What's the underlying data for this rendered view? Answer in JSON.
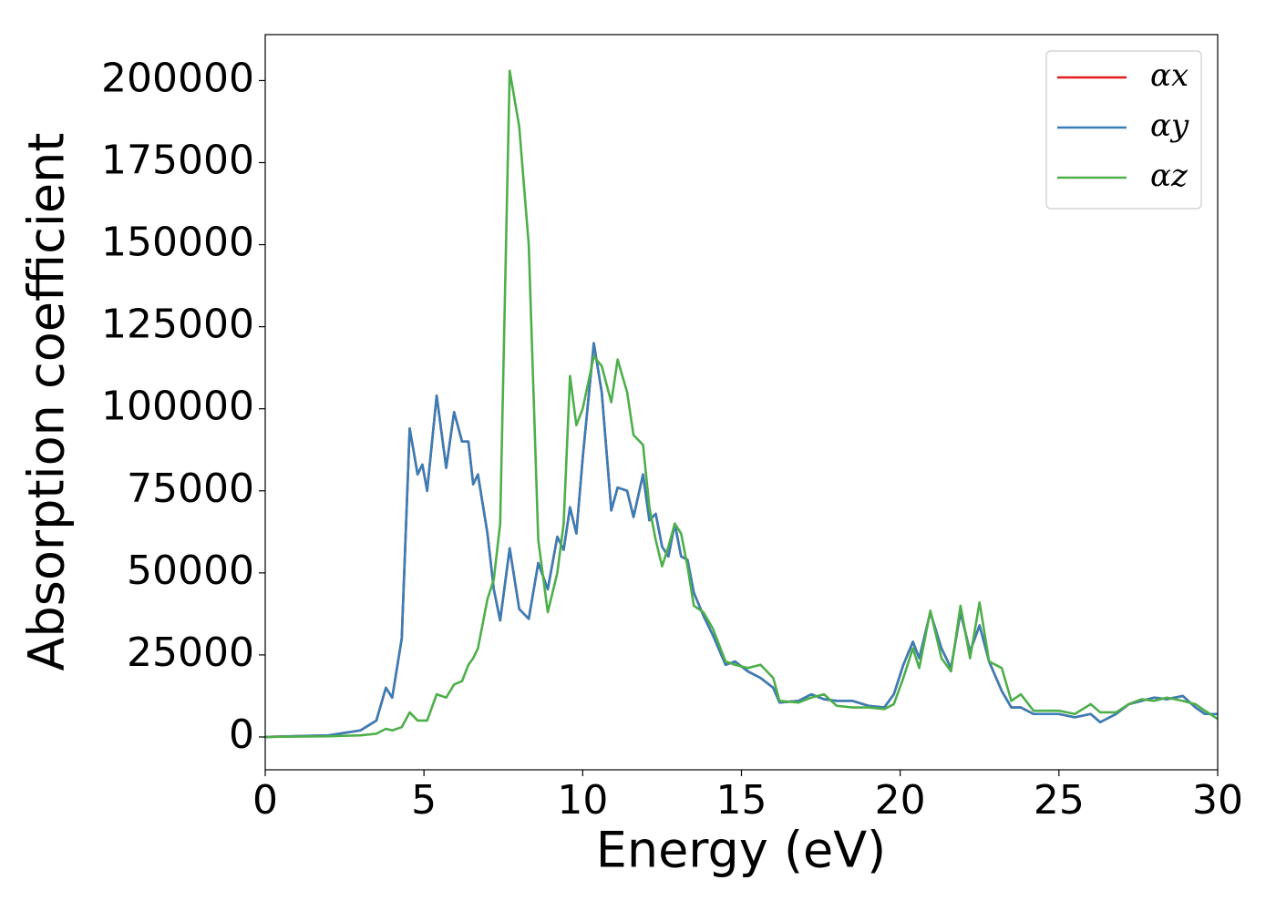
{
  "chart_data": {
    "type": "line",
    "x_label": "Energy (eV)",
    "y_label": "Absorption coefficient",
    "xlim": [
      0,
      30
    ],
    "ylim": [
      -10000,
      214000
    ],
    "xticks": [
      0,
      5,
      10,
      15,
      20,
      25,
      30
    ],
    "yticks": [
      0,
      25000,
      50000,
      75000,
      100000,
      125000,
      150000,
      175000,
      200000
    ],
    "legend": "upper right",
    "x": [
      0,
      2,
      3,
      3.5,
      3.8,
      4.0,
      4.3,
      4.55,
      4.8,
      4.95,
      5.1,
      5.4,
      5.7,
      5.95,
      6.2,
      6.4,
      6.55,
      6.7,
      7.0,
      7.2,
      7.4,
      7.7,
      8.0,
      8.3,
      8.6,
      8.9,
      9.2,
      9.4,
      9.6,
      9.8,
      10.0,
      10.35,
      10.6,
      10.9,
      11.1,
      11.4,
      11.6,
      11.9,
      12.1,
      12.3,
      12.5,
      12.7,
      12.9,
      13.1,
      13.3,
      13.5,
      13.8,
      14.1,
      14.5,
      14.8,
      15.2,
      15.6,
      16.0,
      16.2,
      16.8,
      17.2,
      17.6,
      18.0,
      18.5,
      19.0,
      19.5,
      19.8,
      20.1,
      20.4,
      20.6,
      20.95,
      21.3,
      21.6,
      21.9,
      22.2,
      22.5,
      22.8,
      23.2,
      23.5,
      23.8,
      24.2,
      25.0,
      25.5,
      26.0,
      26.3,
      26.8,
      27.2,
      27.6,
      28.0,
      28.4,
      28.9,
      29.3,
      29.6,
      30
    ],
    "series": [
      {
        "name": "αx",
        "color": "#e41a1c",
        "values": [
          0,
          500,
          2000,
          5000,
          15000,
          12000,
          30000,
          94000,
          80000,
          83000,
          75000,
          104000,
          82000,
          99000,
          90000,
          90000,
          77000,
          80000,
          62000,
          45000,
          35500,
          57500,
          39000,
          36000,
          53000,
          45000,
          61000,
          57000,
          70000,
          62000,
          85000,
          120000,
          105000,
          69000,
          76000,
          75000,
          67000,
          80000,
          66000,
          68000,
          58000,
          55000,
          65000,
          55000,
          54000,
          44000,
          37000,
          31000,
          22000,
          23000,
          20000,
          18000,
          15000,
          10500,
          11000,
          13000,
          11500,
          11000,
          11000,
          9500,
          9000,
          13000,
          22000,
          29000,
          24000,
          38000,
          27000,
          21000,
          38000,
          26000,
          34000,
          23000,
          14000,
          9000,
          9000,
          7000,
          7000,
          6000,
          7000,
          4500,
          7000,
          10000,
          11000,
          12000,
          11500,
          12500,
          9000,
          7000,
          7000
        ]
      },
      {
        "name": "αy",
        "color": "#377eb8",
        "values": [
          0,
          500,
          2000,
          5000,
          15000,
          12000,
          30000,
          94000,
          80000,
          83000,
          75000,
          104000,
          82000,
          99000,
          90000,
          90000,
          77000,
          80000,
          62000,
          45000,
          35500,
          57500,
          39000,
          36000,
          53000,
          45000,
          61000,
          57000,
          70000,
          62000,
          85000,
          120000,
          105000,
          69000,
          76000,
          75000,
          67000,
          80000,
          66000,
          68000,
          58000,
          55000,
          65000,
          55000,
          54000,
          44000,
          37000,
          31000,
          22000,
          23000,
          20000,
          18000,
          15000,
          10500,
          11000,
          13000,
          11500,
          11000,
          11000,
          9500,
          9000,
          13000,
          22000,
          29000,
          24000,
          38000,
          27000,
          21000,
          38000,
          26000,
          34000,
          23000,
          14000,
          9000,
          9000,
          7000,
          7000,
          6000,
          7000,
          4500,
          7000,
          10000,
          11000,
          12000,
          11500,
          12500,
          9000,
          7000,
          7000
        ]
      },
      {
        "name": "αz",
        "color": "#4daf4a",
        "values": [
          0,
          200,
          500,
          1000,
          2500,
          2000,
          3000,
          7500,
          5000,
          5000,
          5000,
          13000,
          12000,
          16000,
          17000,
          22000,
          24000,
          27000,
          42000,
          48000,
          65000,
          203000,
          186000,
          150000,
          60000,
          38000,
          50000,
          65000,
          110000,
          95000,
          100000,
          116000,
          113000,
          102000,
          115000,
          105000,
          92000,
          89000,
          70000,
          60000,
          52000,
          58000,
          65000,
          62000,
          52000,
          40000,
          38000,
          33000,
          23000,
          22000,
          21000,
          22000,
          18000,
          11000,
          10500,
          12000,
          13000,
          9500,
          9000,
          9000,
          8500,
          10000,
          18000,
          27000,
          21000,
          38500,
          24000,
          20000,
          40000,
          24000,
          41000,
          23000,
          21000,
          11000,
          13000,
          8000,
          8000,
          7000,
          10000,
          7500,
          7500,
          10000,
          11500,
          11000,
          12000,
          11000,
          10000,
          8000,
          5500
        ]
      }
    ]
  }
}
